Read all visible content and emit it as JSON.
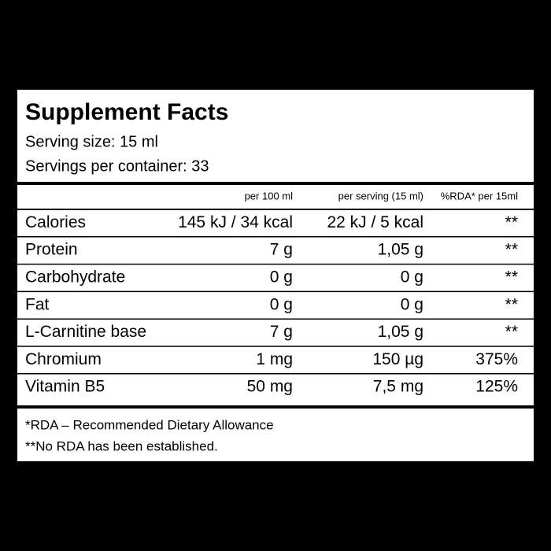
{
  "title": "Supplement Facts",
  "serving_size": "Serving size: 15 ml",
  "servings_per_container": "Servings per container: 33",
  "table": {
    "columns": [
      "per 100 ml",
      "per serving (15 ml)",
      "%RDA* per 15ml"
    ],
    "rows": [
      [
        "Calories",
        "145 kJ / 34 kcal",
        "22 kJ / 5 kcal",
        "**"
      ],
      [
        "Protein",
        "7 g",
        "1,05 g",
        "**"
      ],
      [
        "Carbohydrate",
        "0 g",
        "0 g",
        "**"
      ],
      [
        "Fat",
        "0 g",
        "0 g",
        "**"
      ],
      [
        "L-Carnitine base",
        "7 g",
        "1,05 g",
        "**"
      ],
      [
        "Chromium",
        "1 mg",
        "150 µg",
        "375%"
      ],
      [
        "Vitamin B5",
        "50 mg",
        "7,5 mg",
        "125%"
      ]
    ]
  },
  "footnotes": [
    "*RDA – Recommended Dietary Allowance",
    "**No RDA has been established."
  ]
}
